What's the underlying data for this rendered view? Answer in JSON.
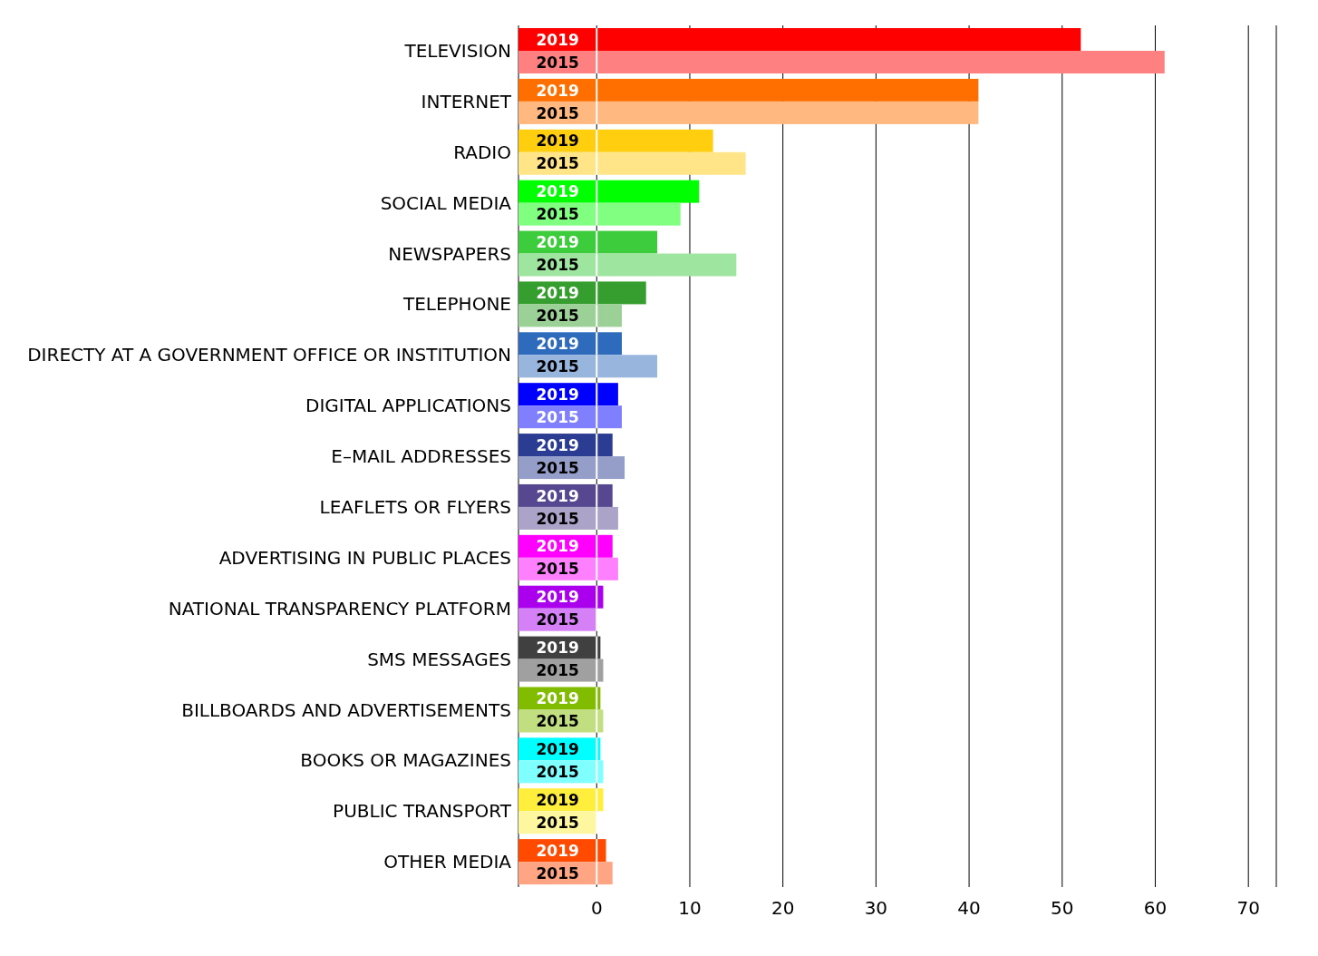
{
  "chart_data": {
    "type": "bar",
    "orientation": "horizontal",
    "categories": [
      "TELEVISION",
      "INTERNET",
      "RADIO",
      "SOCIAL MEDIA",
      "NEWSPAPERS",
      "TELEPHONE",
      "DIRECTY AT A GOVERNMENT OFFICE OR INSTITUTION",
      "DIGITAL APPLICATIONS",
      "E–MAIL ADDRESSES",
      "LEAFLETS OR FLYERS",
      "ADVERTISING IN PUBLIC PLACES",
      "NATIONAL TRANSPARENCY PLATFORM",
      "SMS MESSAGES",
      "BILLBOARDS AND ADVERTISEMENTS",
      "BOOKS OR MAGAZINES",
      "PUBLIC TRANSPORT",
      "OTHER MEDIA"
    ],
    "series": [
      {
        "name": "2019",
        "colors": [
          "#ff0000",
          "#ff6f00",
          "#ffcf0f",
          "#00ff00",
          "#3ccc3c",
          "#369e2e",
          "#2e6bbd",
          "#0000ff",
          "#2b3d92",
          "#574791",
          "#ff00ff",
          "#aa00ee",
          "#404040",
          "#82bc00",
          "#00ffff",
          "#ffee3c",
          "#ff4a00"
        ],
        "values": [
          52,
          41,
          12.5,
          11,
          6.5,
          5.3,
          2.7,
          2.3,
          1.7,
          1.7,
          1.7,
          0.7,
          0.4,
          0.4,
          0.4,
          0.7,
          1
        ]
      },
      {
        "name": "2015",
        "colors": [
          "#ff8080",
          "#ffb880",
          "#ffe587",
          "#80ff80",
          "#9ee6a0",
          "#9bd196",
          "#98b5de",
          "#8080ff",
          "#959ec8",
          "#aba3c8",
          "#ff80ff",
          "#d580f6",
          "#a0a0a0",
          "#c1df80",
          "#80ffff",
          "#fff7a0",
          "#ffa584"
        ],
        "values": [
          61,
          41,
          16,
          9,
          15,
          2.7,
          6.5,
          2.7,
          3,
          2.3,
          2.3,
          0,
          0.7,
          0.7,
          0.7,
          0,
          1.7
        ]
      }
    ],
    "xlim": [
      -8.4,
      73
    ],
    "xticks": [
      0,
      10,
      20,
      30,
      40,
      50,
      60,
      70
    ],
    "grid": "x"
  }
}
